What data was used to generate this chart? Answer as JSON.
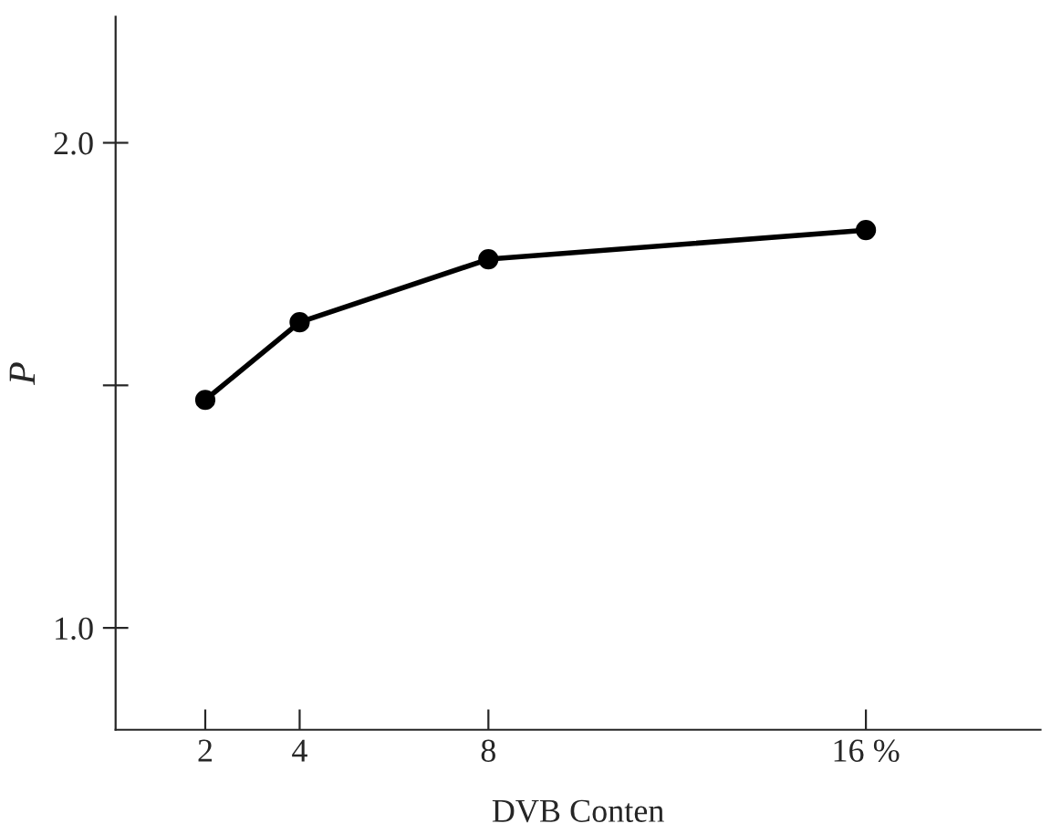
{
  "chart_data": {
    "type": "line",
    "xlabel": "DVB Conten",
    "ylabel": "P",
    "x": [
      2,
      4,
      8,
      16
    ],
    "series": [
      {
        "color": "#000000",
        "values": [
          1.47,
          1.63,
          1.76,
          1.82
        ]
      }
    ],
    "xlim": [
      0.1,
      19.7
    ],
    "ylim": [
      0.79,
      2.26
    ],
    "xticks": [
      2,
      4,
      8,
      {
        "value": 16,
        "label": "16 %"
      }
    ],
    "yticks": [
      {
        "value": 1.0,
        "label": "1.0"
      },
      {
        "value": 1.5,
        "label": null
      },
      {
        "value": 2.0,
        "label": "2.0"
      }
    ],
    "marker": "circle",
    "line_style": "solid",
    "grid": false
  }
}
